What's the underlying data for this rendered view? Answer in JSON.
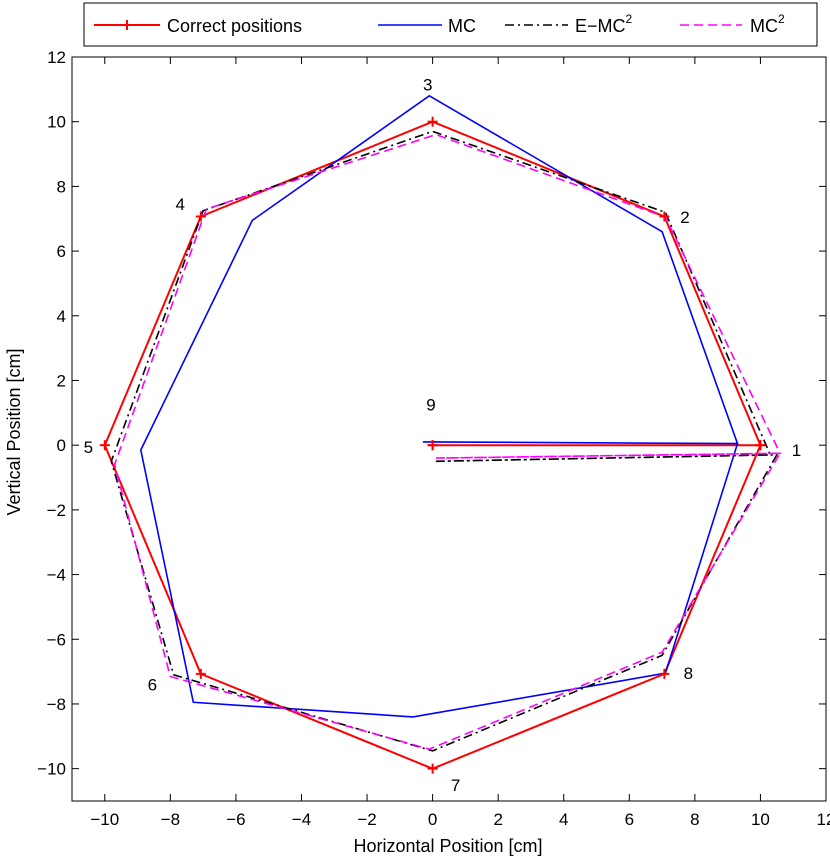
{
  "chart_data": {
    "type": "line",
    "title": "",
    "xlabel": "Horizontal Position [cm]",
    "ylabel": "Vertical Position [cm]",
    "xlim": [
      -11,
      12
    ],
    "ylim": [
      -11,
      12
    ],
    "xticks": [
      -10,
      -8,
      -6,
      -4,
      -2,
      0,
      2,
      4,
      6,
      8,
      10,
      12
    ],
    "yticks": [
      -10,
      -8,
      -6,
      -4,
      -2,
      0,
      2,
      4,
      6,
      8,
      10,
      12
    ],
    "xtick_labels": [
      "−10",
      "−8",
      "−6",
      "−4",
      "−2",
      "0",
      "2",
      "4",
      "6",
      "8",
      "10",
      "12"
    ],
    "ytick_labels": [
      "−10",
      "−8",
      "−6",
      "−4",
      "−2",
      "0",
      "2",
      "4",
      "6",
      "8",
      "10",
      "12"
    ],
    "legend_location": "top",
    "series": [
      {
        "name": "Correct positions",
        "color": "#ff0000",
        "style": "solid-plus",
        "x": [
          0,
          10,
          7.07,
          0,
          -7.07,
          -10,
          -7.07,
          0,
          7.07,
          10,
          0
        ],
        "y": [
          0,
          0,
          7.07,
          10,
          7.07,
          0,
          -7.07,
          -10,
          -7.07,
          0,
          0
        ]
      },
      {
        "name": "MC",
        "color": "#0000ff",
        "style": "solid",
        "x": [
          0,
          9.3,
          7,
          -0.1,
          -5.5,
          -8.9,
          -7.3,
          -0.6,
          7.1,
          9.3,
          -0.3
        ],
        "y": [
          0.1,
          0.05,
          6.6,
          10.8,
          6.95,
          -0.15,
          -7.95,
          -8.4,
          -7.05,
          0.05,
          0.1
        ]
      },
      {
        "name": "E−MC",
        "superscript": "2",
        "color": "#000000",
        "style": "dashdot",
        "x": [
          0.1,
          10.3,
          7.1,
          0,
          -7,
          -9.8,
          -7.9,
          0,
          7,
          10.5,
          0.1
        ],
        "y": [
          -0.5,
          -0.3,
          7.2,
          9.7,
          7.25,
          -0.5,
          -7.1,
          -9.45,
          -6.5,
          -0.3,
          -0.5
        ]
      },
      {
        "name": "MC",
        "superscript": "2",
        "color": "#ff00ff",
        "style": "dashed",
        "x": [
          0.1,
          10.6,
          7.1,
          0.1,
          -6.9,
          -9.7,
          -8,
          -0.1,
          7,
          10.6,
          0.1
        ],
        "y": [
          -0.4,
          -0.25,
          7.05,
          9.6,
          7.3,
          -0.6,
          -7.15,
          -9.4,
          -6.4,
          -0.25,
          -0.4
        ]
      }
    ],
    "annotations": [
      {
        "text": "1",
        "x": 11.1,
        "y": -0.15
      },
      {
        "text": "2",
        "x": 7.7,
        "y": 7.05
      },
      {
        "text": "3",
        "x": -0.15,
        "y": 11.15
      },
      {
        "text": "4",
        "x": -7.7,
        "y": 7.45
      },
      {
        "text": "5",
        "x": -10.5,
        "y": -0.05
      },
      {
        "text": "6",
        "x": -8.55,
        "y": -7.4
      },
      {
        "text": "7",
        "x": 0.7,
        "y": -10.5
      },
      {
        "text": "8",
        "x": 7.8,
        "y": -7.05
      },
      {
        "text": "9",
        "x": -0.05,
        "y": 1.25
      }
    ]
  }
}
